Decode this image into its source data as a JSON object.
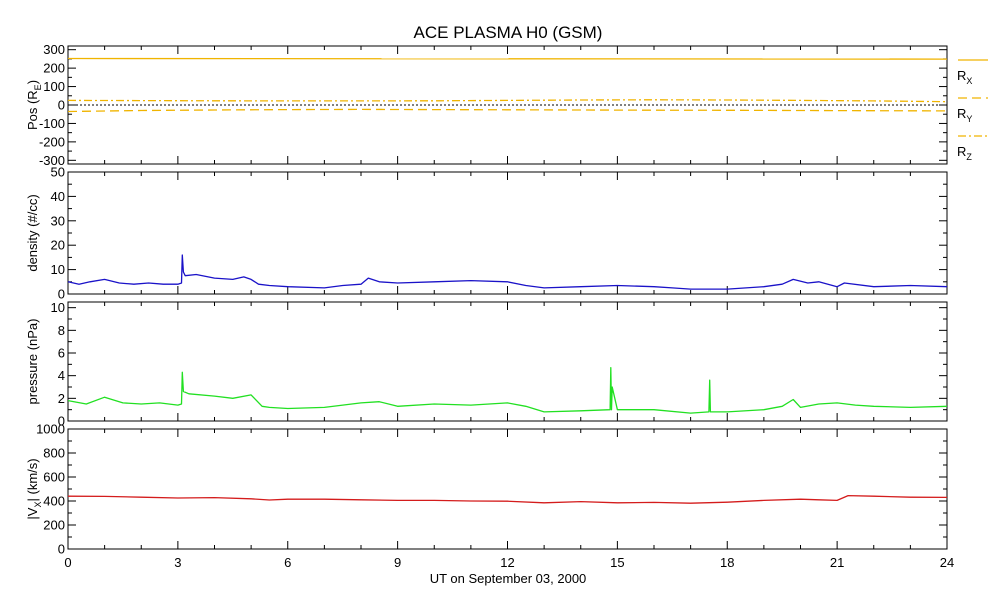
{
  "chart_data": {
    "type": "line",
    "title": "ACE PLASMA H0 (GSM)",
    "xlabel": "UT on September 03, 2000",
    "xlim": [
      0,
      24
    ],
    "xticks": [
      0,
      3,
      6,
      9,
      12,
      15,
      18,
      21,
      24
    ],
    "xticklabels": [
      "0",
      "3",
      "6",
      "9",
      "12",
      "15",
      "18",
      "21",
      "24"
    ],
    "panels": [
      {
        "id": "pos",
        "ylabel": {
          "main": "Pos (R",
          "sub": "E",
          "end": ")"
        },
        "ylim": [
          -320,
          320
        ],
        "yticks": [
          -300,
          -200,
          -100,
          0,
          100,
          200,
          300
        ],
        "yticklabels": [
          "-300",
          "-200",
          "-100",
          "0",
          "100",
          "200",
          "300"
        ],
        "zero_line": true,
        "series": [
          {
            "name": "R_X",
            "label_main": "R",
            "label_sub": "X",
            "color": "#f0b400",
            "dash": "solid",
            "x": [
              0,
              24
            ],
            "y": [
              252,
              249
            ]
          },
          {
            "name": "R_Y",
            "label_main": "R",
            "label_sub": "Y",
            "color": "#f0b400",
            "dash": "dash",
            "x": [
              0,
              2,
              4,
              6,
              8,
              10,
              12,
              14,
              16,
              18,
              20,
              22,
              24
            ],
            "y": [
              -35,
              -30,
              -27,
              -25,
              -24,
              -25,
              -26,
              -27,
              -28,
              -29,
              -30,
              -31,
              -32
            ]
          },
          {
            "name": "R_Z",
            "label_main": "R",
            "label_sub": "Z",
            "color": "#f0b400",
            "dash": "dashdot",
            "x": [
              0,
              2,
              4,
              6,
              8,
              10,
              12,
              14,
              16,
              18,
              20,
              22,
              24
            ],
            "y": [
              25,
              24,
              23,
              22,
              22,
              23,
              25,
              27,
              28,
              27,
              25,
              22,
              18
            ]
          }
        ]
      },
      {
        "id": "density",
        "ylabel": {
          "main": "density (#/cc)"
        },
        "ylim": [
          0,
          50
        ],
        "yticks": [
          0,
          10,
          20,
          30,
          40,
          50
        ],
        "yticklabels": [
          "0",
          "10",
          "20",
          "30",
          "40",
          "50"
        ],
        "series": [
          {
            "name": "density",
            "color": "#1a12c8",
            "dash": "solid",
            "x": [
              0,
              0.3,
              0.6,
              1.0,
              1.4,
              1.8,
              2.2,
              2.6,
              3.0,
              3.1,
              3.12,
              3.15,
              3.2,
              3.5,
              4.0,
              4.5,
              4.8,
              5.0,
              5.2,
              5.5,
              6.0,
              7.0,
              7.5,
              8.0,
              8.2,
              8.5,
              9.0,
              10.0,
              11.0,
              12.0,
              12.5,
              13.0,
              14.0,
              15.0,
              16.0,
              16.5,
              17.0,
              18.0,
              19.0,
              19.5,
              19.8,
              20.2,
              20.5,
              21.0,
              21.2,
              22.0,
              23.0,
              24.0
            ],
            "y": [
              5,
              4,
              5,
              6,
              4.5,
              4,
              4.5,
              4,
              4,
              4.5,
              16,
              9,
              7.5,
              8,
              6.5,
              6,
              7,
              6,
              4,
              3.5,
              3,
              2.5,
              3.5,
              4,
              6.5,
              5,
              4.5,
              5,
              5.5,
              5,
              3.5,
              2.5,
              3,
              3.5,
              3,
              2.5,
              2,
              2,
              3,
              4,
              6,
              4.5,
              5,
              3,
              4.5,
              3,
              3.5,
              3
            ]
          }
        ]
      },
      {
        "id": "pressure",
        "ylabel": {
          "main": "pressure (nPa)"
        },
        "ylim": [
          0,
          10.5
        ],
        "yticks": [
          0,
          2,
          4,
          6,
          8,
          10
        ],
        "yticklabels": [
          "0",
          "2",
          "4",
          "6",
          "8",
          "10"
        ],
        "series": [
          {
            "name": "pressure",
            "color": "#22e022",
            "dash": "solid",
            "x": [
              0,
              0.5,
              1.0,
              1.5,
              2.0,
              2.5,
              3.0,
              3.1,
              3.12,
              3.15,
              3.3,
              4.0,
              4.5,
              5.0,
              5.3,
              5.5,
              6.0,
              7.0,
              8.0,
              8.5,
              9.0,
              10.0,
              11.0,
              12.0,
              12.5,
              13.0,
              14.0,
              14.8,
              14.82,
              14.84,
              14.86,
              15.0,
              16.0,
              17.0,
              17.5,
              17.52,
              17.54,
              18.0,
              19.0,
              19.5,
              19.8,
              20.0,
              20.5,
              21.0,
              21.5,
              22.0,
              23.0,
              24.0
            ],
            "y": [
              1.8,
              1.5,
              2.1,
              1.6,
              1.5,
              1.6,
              1.4,
              1.5,
              4.3,
              2.6,
              2.4,
              2.2,
              2.0,
              2.3,
              1.3,
              1.2,
              1.1,
              1.2,
              1.6,
              1.7,
              1.3,
              1.5,
              1.4,
              1.6,
              1.3,
              0.8,
              0.9,
              1.0,
              4.7,
              1.0,
              3.0,
              1.0,
              1.0,
              0.7,
              0.8,
              3.6,
              0.8,
              0.8,
              1.0,
              1.3,
              1.9,
              1.2,
              1.5,
              1.6,
              1.4,
              1.3,
              1.2,
              1.3
            ]
          }
        ]
      },
      {
        "id": "vx",
        "ylabel": {
          "main": "|V",
          "sub": "X",
          "end": "| (km/s)"
        },
        "ylim": [
          0,
          1000
        ],
        "yticks": [
          0,
          200,
          400,
          600,
          800,
          1000
        ],
        "yticklabels": [
          "0",
          "200",
          "400",
          "600",
          "800",
          "1000"
        ],
        "series": [
          {
            "name": "Vx",
            "color": "#d41c1c",
            "dash": "solid",
            "x": [
              0,
              1,
              2,
              3,
              4,
              5,
              5.5,
              6,
              7,
              8,
              9,
              10,
              11,
              12,
              13,
              14,
              15,
              16,
              17,
              18,
              19,
              20,
              20.5,
              21,
              21.3,
              22,
              23,
              24
            ],
            "y": [
              440,
              438,
              432,
              425,
              428,
              418,
              408,
              415,
              415,
              410,
              405,
              405,
              400,
              398,
              385,
              395,
              385,
              388,
              382,
              390,
              405,
              415,
              410,
              405,
              445,
              440,
              432,
              430
            ]
          }
        ]
      }
    ]
  }
}
